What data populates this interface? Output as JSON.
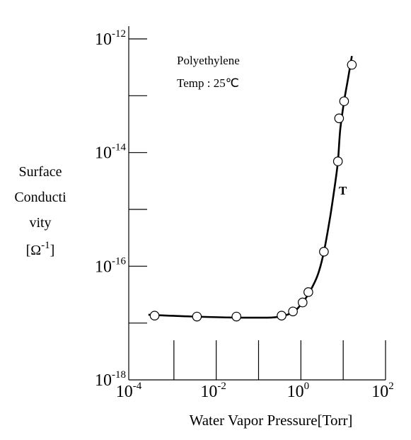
{
  "chart_data": {
    "type": "line",
    "title": "",
    "annotations": [
      "Polyethylene",
      "Temp : 25℃"
    ],
    "curve_label": "T",
    "xlabel": "Water Vapor Pressure[Torr]",
    "ylabel_lines": [
      "Surface",
      "Conducti",
      "vity"
    ],
    "ylabel_unit": {
      "base": "[Ω",
      "exp": "-1",
      "close": "]"
    },
    "x_scale": "log",
    "y_scale": "log",
    "xlim": [
      0.0001,
      100
    ],
    "ylim": [
      1e-18,
      1e-12
    ],
    "x_tick_labels": [
      {
        "base": "10",
        "exp": "-4",
        "value": 0.0001
      },
      {
        "base": "10",
        "exp": "-2",
        "value": 0.01
      },
      {
        "base": "10",
        "exp": "0",
        "value": 1
      },
      {
        "base": "10",
        "exp": "2",
        "value": 100
      }
    ],
    "y_tick_labels": [
      {
        "base": "10",
        "exp": "-12",
        "value": 1e-12
      },
      {
        "base": "10",
        "exp": "-14",
        "value": 1e-14
      },
      {
        "base": "10",
        "exp": "-16",
        "value": 1e-16
      },
      {
        "base": "10",
        "exp": "-18",
        "value": 1e-18
      }
    ],
    "series": [
      {
        "points": [
          {
            "x": 0.00035,
            "y": 1.35e-17
          },
          {
            "x": 0.0035,
            "y": 1.3e-17
          },
          {
            "x": 0.03,
            "y": 1.3e-17
          },
          {
            "x": 0.35,
            "y": 1.35e-17
          },
          {
            "x": 0.65,
            "y": 1.6e-17
          },
          {
            "x": 1.1,
            "y": 2.3e-17
          },
          {
            "x": 1.5,
            "y": 3.5e-17
          },
          {
            "x": 3.5,
            "y": 1.8e-16
          },
          {
            "x": 7.5,
            "y": 7e-15
          },
          {
            "x": 8.0,
            "y": 4e-14
          },
          {
            "x": 10.5,
            "y": 8e-14
          },
          {
            "x": 16.0,
            "y": 3.5e-13
          }
        ],
        "curve": [
          {
            "x": 0.00025,
            "y": 1.4e-17
          },
          {
            "x": 0.003,
            "y": 1.3e-17
          },
          {
            "x": 0.03,
            "y": 1.25e-17
          },
          {
            "x": 0.2,
            "y": 1.25e-17
          },
          {
            "x": 0.4,
            "y": 1.35e-17
          },
          {
            "x": 0.7,
            "y": 1.6e-17
          },
          {
            "x": 1.1,
            "y": 2.3e-17
          },
          {
            "x": 1.6,
            "y": 3.5e-17
          },
          {
            "x": 2.5,
            "y": 7e-17
          },
          {
            "x": 3.5,
            "y": 1.8e-16
          },
          {
            "x": 5,
            "y": 8e-16
          },
          {
            "x": 6.5,
            "y": 3e-15
          },
          {
            "x": 7.5,
            "y": 7e-15
          },
          {
            "x": 8.5,
            "y": 2.5e-14
          },
          {
            "x": 10.5,
            "y": 8e-14
          },
          {
            "x": 13,
            "y": 2e-13
          },
          {
            "x": 16,
            "y": 5e-13
          }
        ]
      }
    ]
  }
}
